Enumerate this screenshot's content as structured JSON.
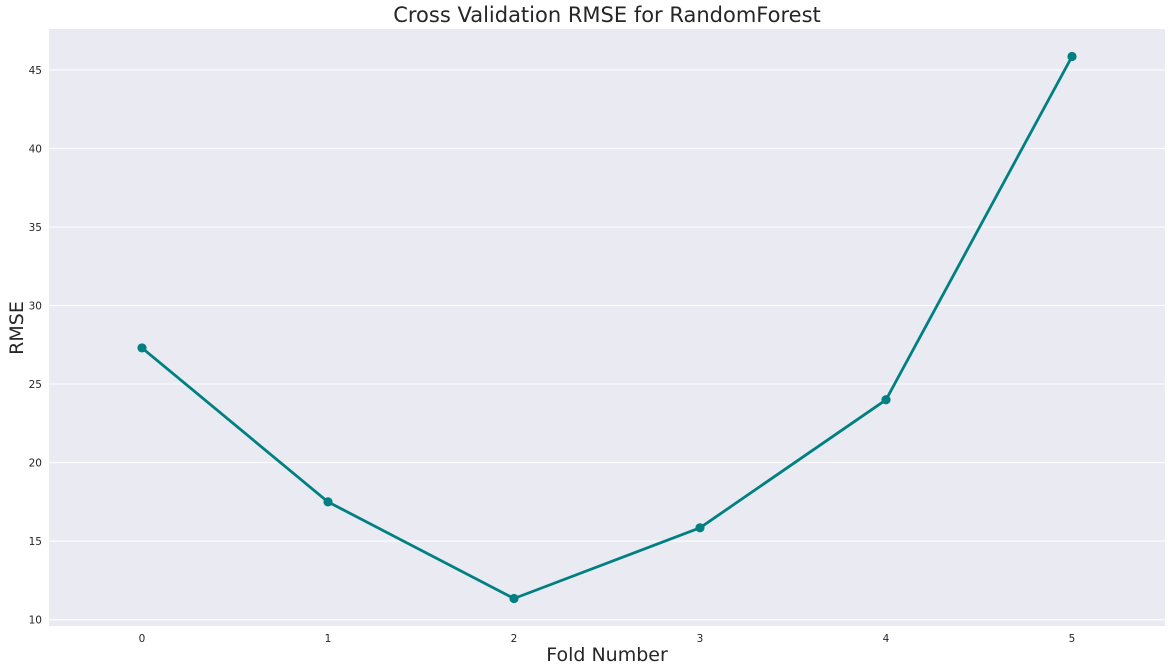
{
  "chart_data": {
    "type": "line",
    "title": "Cross Validation RMSE for RandomForest",
    "xlabel": "Fold Number",
    "ylabel": "RMSE",
    "x": [
      0,
      1,
      2,
      3,
      4,
      5
    ],
    "x_tick_labels": [
      "0",
      "1",
      "2",
      "3",
      "4",
      "5"
    ],
    "series": [
      {
        "values": [
          27.3,
          17.5,
          11.35,
          15.85,
          24.0,
          45.85
        ]
      }
    ],
    "y_ticks": [
      10,
      15,
      20,
      25,
      30,
      35,
      40,
      45
    ],
    "y_tick_labels": [
      "10",
      "15",
      "20",
      "25",
      "30",
      "35",
      "40",
      "45"
    ],
    "xlim": [
      -0.5,
      5.5
    ],
    "ylim": [
      9.6,
      47.6
    ],
    "grid": true,
    "colors": {
      "line": "#008080",
      "background": "#eaeaf2",
      "grid": "#ffffff"
    }
  }
}
